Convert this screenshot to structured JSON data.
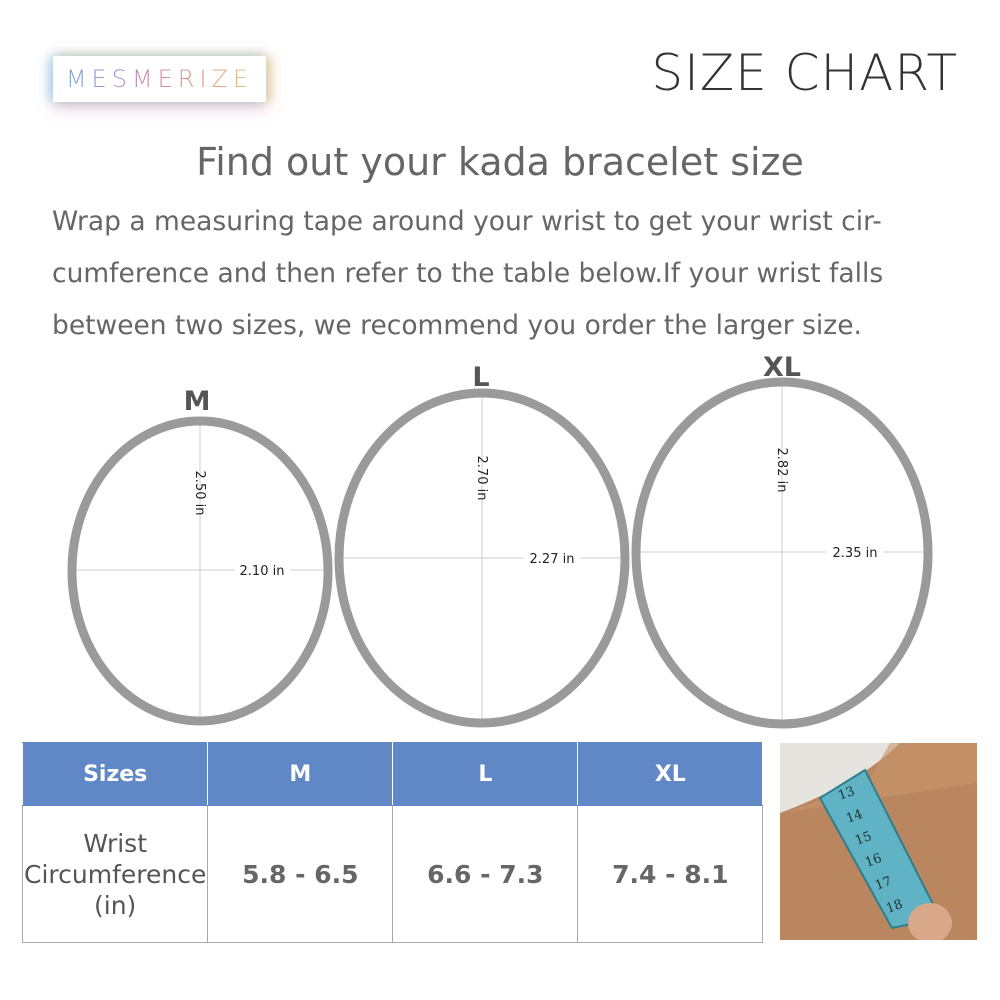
{
  "brand": {
    "logo": "MESMERIZE"
  },
  "header": {
    "title": "SIZE CHART"
  },
  "subtitle": "Find out your kada bracelet size",
  "instructions": [
    "Wrap a measuring tape around your wrist to get your wrist cir-",
    "cumference and then refer to the table below.If your wrist falls",
    "between two sizes, we recommend you order the larger size."
  ],
  "rings": [
    {
      "size": "M",
      "height": "2.50 in",
      "width": "2.10 in"
    },
    {
      "size": "L",
      "height": "2.70 in",
      "width": "2.27 in"
    },
    {
      "size": "XL",
      "height": "2.82 in",
      "width": "2.35 in"
    }
  ],
  "table": {
    "headers": [
      "Sizes",
      "M",
      "L",
      "XL"
    ],
    "row_label": [
      "Wrist",
      "Circumference",
      "(in)"
    ],
    "values": [
      "5.8 - 6.5",
      "6.6 - 7.3",
      "7.4 - 8.1"
    ]
  },
  "colors": {
    "header_blue": "#6088c6",
    "ring": "#9a9a9a",
    "tape": "#5fb3c4"
  },
  "photo": {
    "tape_marks": [
      "13",
      "14",
      "15",
      "16",
      "17",
      "18"
    ]
  }
}
